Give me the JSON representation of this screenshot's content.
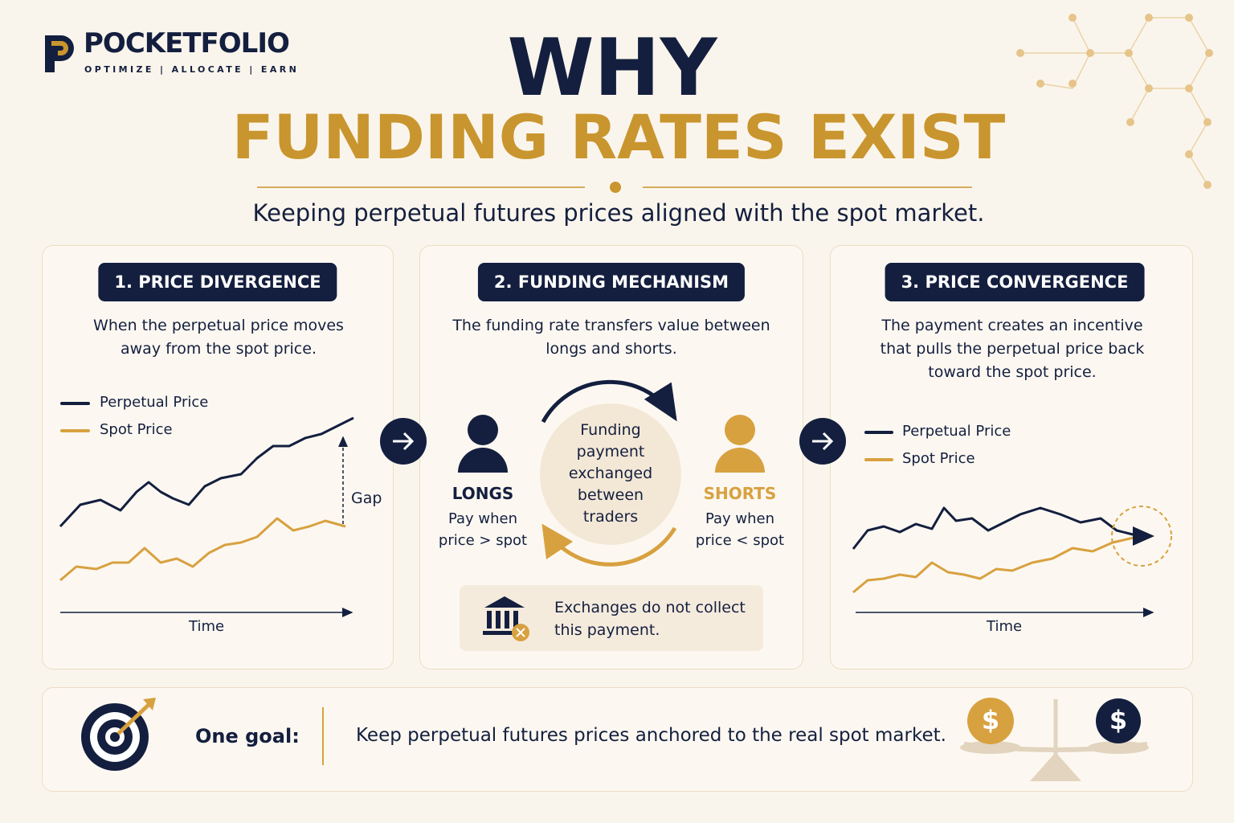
{
  "brand": {
    "name": "POCKETFOLIO",
    "tagline": "OPTIMIZE | ALLOCATE | EARN"
  },
  "header": {
    "title_line1": "WHY",
    "title_line2": "FUNDING RATES EXIST",
    "subtitle": "Keeping perpetual futures prices aligned with the spot market."
  },
  "panels": [
    {
      "heading": "1. PRICE DIVERGENCE",
      "text": "When the perpetual price moves away from the spot price.",
      "legend": [
        "Perpetual Price",
        "Spot Price"
      ],
      "gap_label": "Gap",
      "axis_label": "Time"
    },
    {
      "heading": "2. FUNDING MECHANISM",
      "text": "The funding rate transfers value between longs and shorts.",
      "longs": {
        "label": "LONGS",
        "text": "Pay when price > spot"
      },
      "shorts": {
        "label": "SHORTS",
        "text": "Pay when price < spot"
      },
      "center": "Funding payment exchanged between traders",
      "note": "Exchanges do not collect this payment."
    },
    {
      "heading": "3. PRICE CONVERGENCE",
      "text": "The payment creates an incentive that pulls the perpetual price back toward the spot price.",
      "legend": [
        "Perpetual Price",
        "Spot Price"
      ],
      "axis_label": "Time"
    }
  ],
  "footer": {
    "label": "One goal:",
    "text": "Keep perpetual futures prices anchored to the real spot market.",
    "coin_symbol": "$"
  }
}
